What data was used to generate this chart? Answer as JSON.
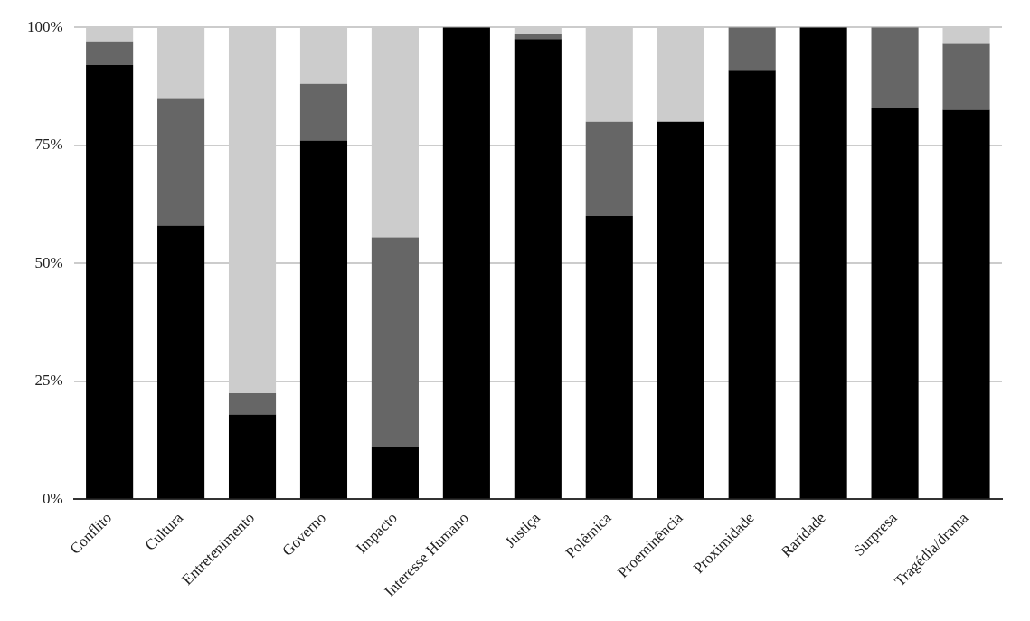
{
  "chart_data": {
    "type": "bar",
    "stacked": true,
    "categories": [
      "Conflito",
      "Cultura",
      "Entretenimento",
      "Governo",
      "Impacto",
      "Interesse Humano",
      "Justiça",
      "Polêmica",
      "Proeminência",
      "Proximidade",
      "Raridade",
      "Surpresa",
      "Tragédia/drama"
    ],
    "series": [
      {
        "color": "#000000",
        "values": [
          92,
          58,
          18,
          76,
          11,
          100,
          97.5,
          60,
          80,
          91,
          100,
          83,
          82.5
        ]
      },
      {
        "color": "#666666",
        "values": [
          5,
          27,
          4.5,
          12,
          44.5,
          0,
          1,
          20,
          0,
          9,
          0,
          17,
          14
        ]
      },
      {
        "color": "#cccccc",
        "values": [
          3,
          15,
          77.5,
          12,
          44.5,
          0,
          1.5,
          20,
          20,
          0,
          0,
          0,
          3.5
        ]
      }
    ],
    "ylim": [
      0,
      100
    ],
    "yticks": [
      {
        "value": 0,
        "label": "0%"
      },
      {
        "value": 25,
        "label": "25%"
      },
      {
        "value": 50,
        "label": "50%"
      },
      {
        "value": 75,
        "label": "75%"
      },
      {
        "value": 100,
        "label": "100%"
      }
    ],
    "grid": "y"
  }
}
